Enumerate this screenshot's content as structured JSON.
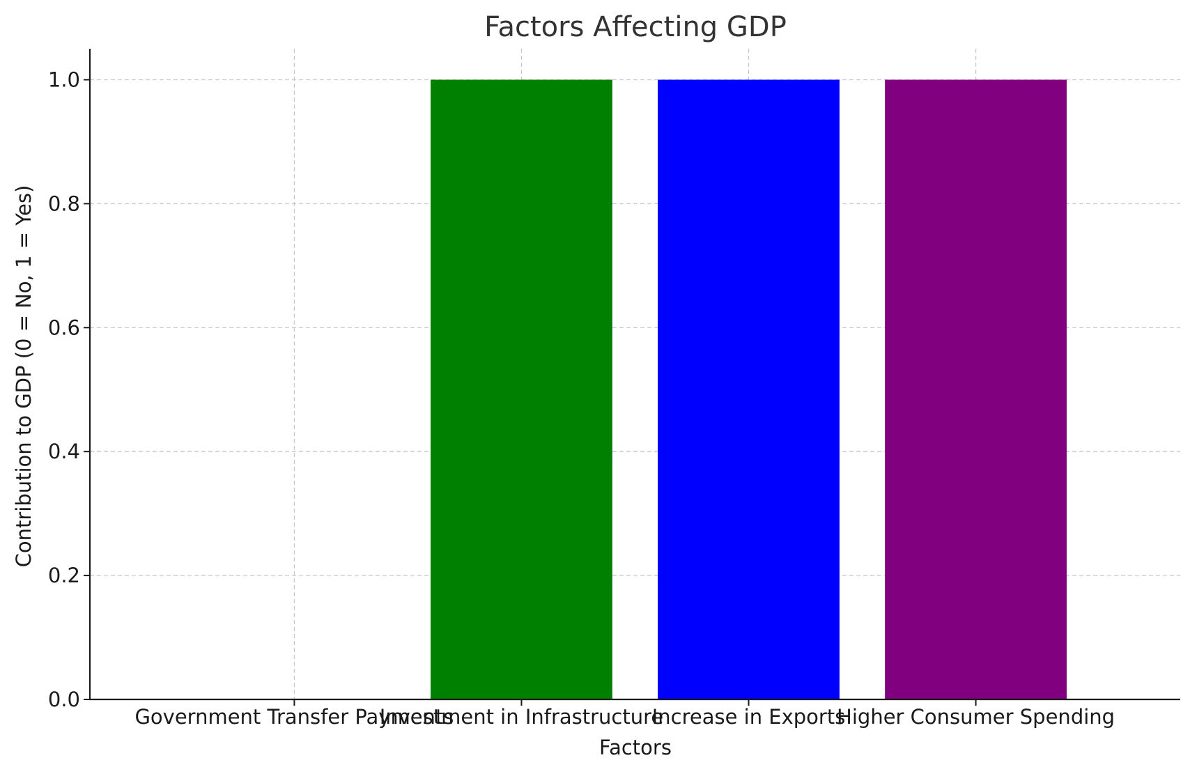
{
  "chart_data": {
    "type": "bar",
    "title": "Factors Affecting GDP",
    "xlabel": "Factors",
    "ylabel": "Contribution to GDP (0 = No, 1 = Yes)",
    "categories": [
      "Government Transfer Payments",
      "Investment in Infrastructure",
      "Increase in Exports",
      "Higher Consumer Spending"
    ],
    "values": [
      0,
      1,
      1,
      1
    ],
    "colors": [
      "#ff0000",
      "#008000",
      "#0000ff",
      "#800080"
    ],
    "ylim": [
      0,
      1.05
    ],
    "yticks": [
      0.0,
      0.2,
      0.4,
      0.6,
      0.8,
      1.0
    ],
    "ytick_labels": [
      "0.0",
      "0.2",
      "0.4",
      "0.6",
      "0.8",
      "1.0"
    ],
    "grid": true
  }
}
